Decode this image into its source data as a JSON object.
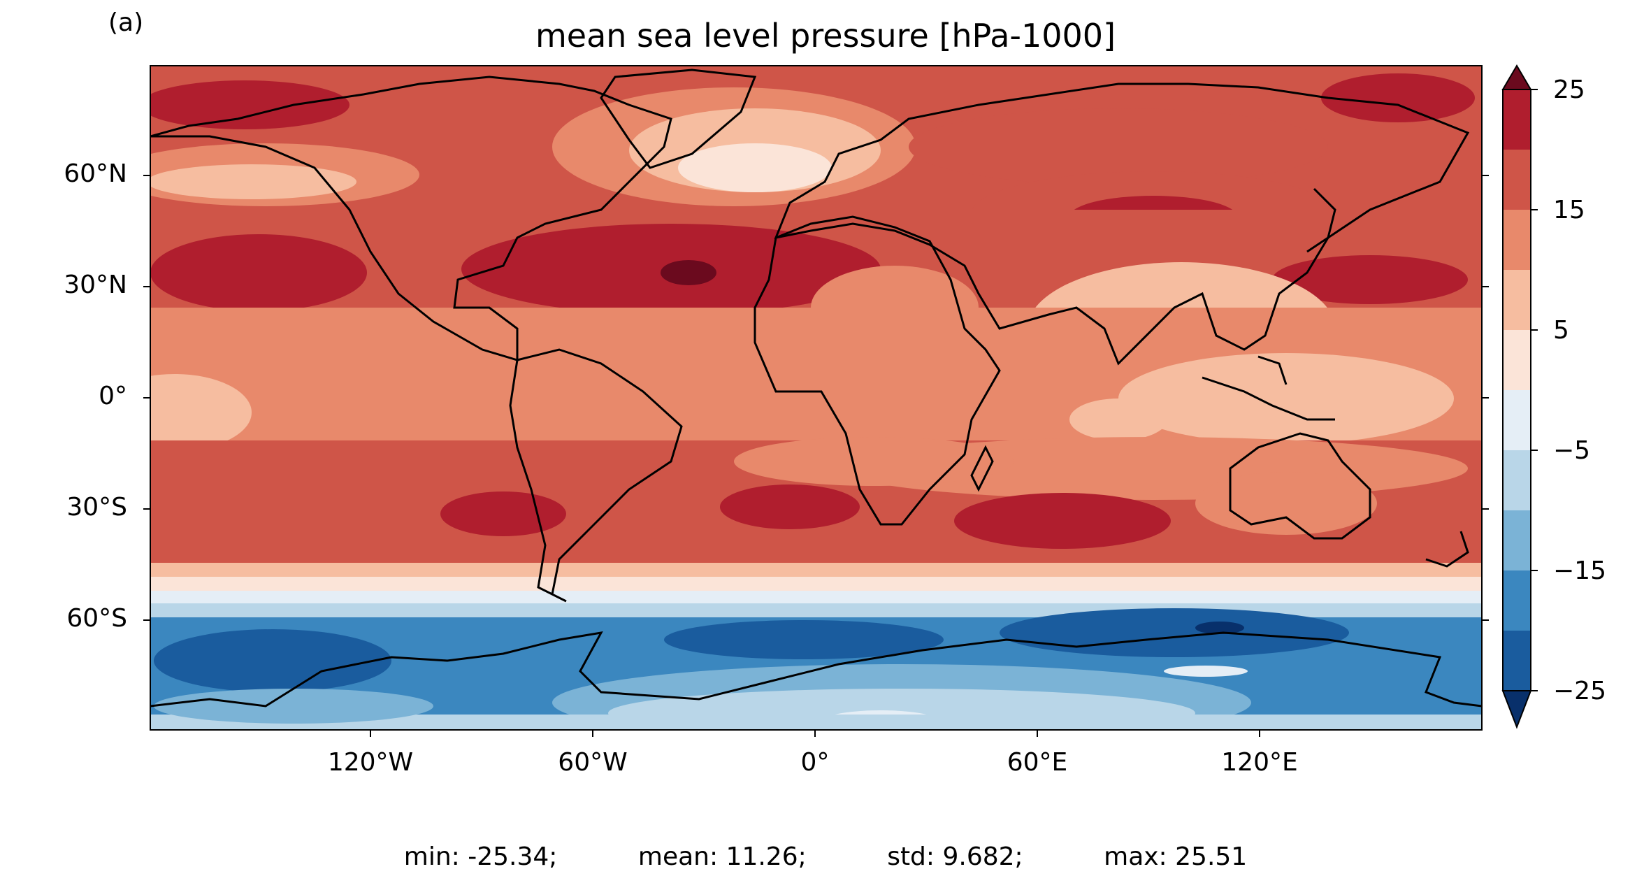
{
  "panel_label": "(a)",
  "title": "mean sea level pressure [hPa-1000]",
  "map": {
    "projection": "equirectangular",
    "lon_range": [
      -180,
      180
    ],
    "lat_range": [
      -90,
      90
    ],
    "lat_ticks": [
      "60°N",
      "30°N",
      "0°",
      "30°S",
      "60°S"
    ],
    "lon_ticks": [
      "120°W",
      "60°W",
      "0°",
      "60°E",
      "120°E"
    ],
    "coastlines": true
  },
  "colorbar": {
    "colormap": "RdBu_r",
    "levels": [
      -25,
      -20,
      -15,
      -10,
      -5,
      0,
      5,
      10,
      15,
      20,
      25
    ],
    "tick_labels": [
      "25",
      "15",
      "5",
      "−5",
      "−15",
      "−25"
    ],
    "extend": "both",
    "colors": [
      "#08306b",
      "#1a5c9e",
      "#3b87bf",
      "#7bb3d6",
      "#b9d6e8",
      "#e5eef6",
      "#fbe4d8",
      "#f6bda0",
      "#e8896b",
      "#cf5548",
      "#b01e2e",
      "#6b0a1e"
    ]
  },
  "stats": {
    "min": "min: -25.34;",
    "mean": "mean: 11.26;",
    "std": "std: 9.682;",
    "max": "max: 25.51"
  }
}
